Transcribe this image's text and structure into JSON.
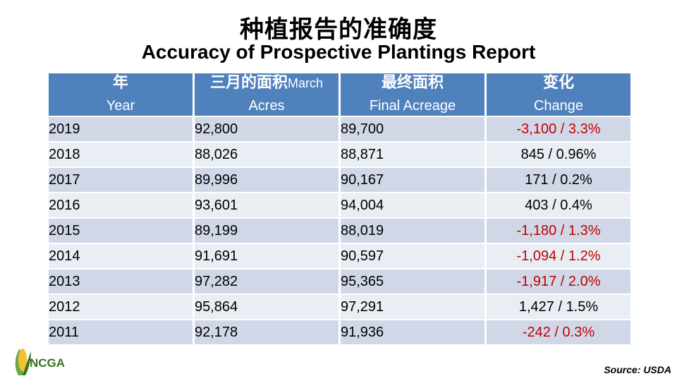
{
  "title_cn": "种植报告的准确度",
  "title_en": "Accuracy of Prospective Plantings Report",
  "headers": [
    {
      "cn": "年",
      "cn_suffix": "",
      "en": "Year"
    },
    {
      "cn": "三月的面积",
      "cn_suffix": "March",
      "en": "Acres"
    },
    {
      "cn": "最终面积",
      "cn_suffix": "",
      "en": "Final Acreage"
    },
    {
      "cn": "变化",
      "cn_suffix": "",
      "en": "Change"
    }
  ],
  "rows": [
    {
      "year": "2019",
      "march": "92,800",
      "final": "89,700",
      "change": "-3,100 / 3.3%"
    },
    {
      "year": "2018",
      "march": "88,026",
      "final": "88,871",
      "change": "845 / 0.96%"
    },
    {
      "year": "2017",
      "march": "89,996",
      "final": "90,167",
      "change": "171 / 0.2%"
    },
    {
      "year": "2016",
      "march": "93,601",
      "final": "94,004",
      "change": "403 / 0.4%"
    },
    {
      "year": "2015",
      "march": "89,199",
      "final": "88,019",
      "change": "-1,180  /  1.3%"
    },
    {
      "year": "2014",
      "march": "91,691",
      "final": "90,597",
      "change": "-1,094  /  1.2%"
    },
    {
      "year": "2013",
      "march": "97,282",
      "final": "95,365",
      "change": "-1,917  /  2.0%"
    },
    {
      "year": "2012",
      "march": "95,864",
      "final": "97,291",
      "change": "1,427  /  1.5%"
    },
    {
      "year": "2011",
      "march": "92,178",
      "final": "91,936",
      "change": "-242  /  0.3%"
    }
  ],
  "logo_text": "NCGA",
  "source": "Source: USDA",
  "colors": {
    "header": "#4f81bd",
    "negative": "#c00000",
    "row_dark": "#d0d8e8",
    "row_light": "#e9edf4"
  }
}
